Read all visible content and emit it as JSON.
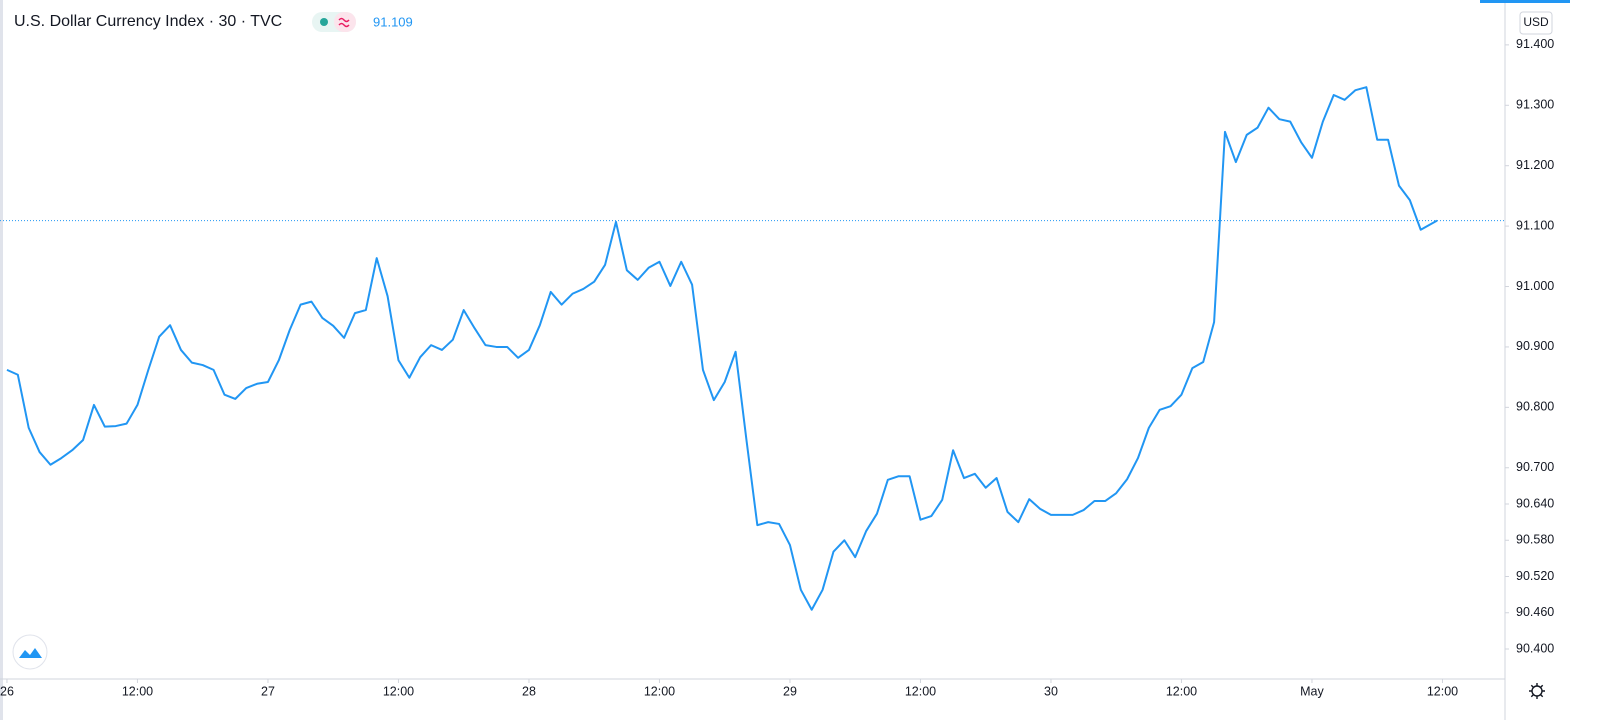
{
  "chart_data": {
    "type": "line",
    "title": "U.S. Dollar Currency Index · 30 · TVC",
    "last_value": 91.109,
    "currency": "USD",
    "color": "#2196f3",
    "x": [
      0,
      1,
      2,
      3,
      4,
      5,
      6,
      7,
      8,
      9,
      10,
      11,
      12,
      13,
      14,
      15,
      16,
      17,
      18,
      19,
      20,
      21,
      22,
      23,
      24,
      25,
      26,
      27,
      28,
      29,
      30,
      31,
      32,
      33,
      34,
      35,
      36,
      37,
      38,
      39,
      40,
      41,
      42,
      43,
      44,
      45,
      46,
      47,
      48,
      49,
      50,
      51,
      52,
      53,
      54,
      55,
      56,
      57,
      58,
      59,
      60,
      61,
      62,
      63,
      64,
      65,
      66,
      67,
      68,
      69,
      70,
      71,
      72,
      73,
      74,
      75,
      76,
      77,
      78,
      79,
      80,
      81,
      82,
      83,
      84,
      85,
      86,
      87,
      88,
      89,
      90,
      91,
      92,
      93,
      94,
      95,
      96,
      97,
      98,
      99,
      100,
      101,
      102,
      103,
      104,
      105,
      106,
      107,
      108,
      109,
      110,
      111,
      112,
      113,
      114,
      115,
      116,
      117,
      118,
      119,
      120,
      121,
      122,
      123,
      124,
      125,
      126,
      127,
      128,
      129,
      130,
      131.5
    ],
    "values": [
      90.862,
      90.854,
      90.766,
      90.726,
      90.705,
      90.716,
      90.729,
      90.746,
      90.804,
      90.768,
      90.769,
      90.773,
      90.804,
      90.862,
      90.917,
      90.936,
      90.895,
      90.874,
      90.87,
      90.862,
      90.821,
      90.814,
      90.832,
      90.839,
      90.842,
      90.878,
      90.928,
      90.97,
      90.975,
      90.948,
      90.935,
      90.915,
      90.956,
      90.961,
      91.047,
      90.984,
      90.878,
      90.849,
      90.883,
      90.903,
      90.895,
      90.912,
      90.961,
      90.931,
      90.903,
      90.9,
      90.9,
      90.882,
      90.895,
      90.936,
      90.991,
      90.97,
      90.988,
      90.996,
      91.008,
      91.036,
      91.107,
      91.027,
      91.011,
      91.031,
      91.041,
      91.001,
      91.041,
      91.003,
      90.862,
      90.812,
      90.842,
      90.892,
      90.746,
      90.605,
      90.61,
      90.607,
      90.572,
      90.498,
      90.465,
      90.498,
      90.561,
      90.58,
      90.552,
      90.595,
      90.624,
      90.68,
      90.686,
      90.686,
      90.614,
      90.62,
      90.647,
      90.729,
      90.683,
      90.69,
      90.667,
      90.683,
      90.627,
      90.61,
      90.648,
      90.632,
      90.622,
      90.622,
      90.622,
      90.63,
      90.645,
      90.645,
      90.658,
      90.681,
      90.716,
      90.766,
      90.796,
      90.802,
      90.821,
      90.865,
      90.875,
      90.941,
      91.256,
      91.206,
      91.251,
      91.263,
      91.296,
      91.277,
      91.273,
      91.239,
      91.213,
      91.273,
      91.317,
      91.309,
      91.325,
      91.33,
      91.243,
      91.243,
      91.167,
      91.143,
      91.094,
      91.109
    ],
    "xlim": [
      -0.18,
      137.75
    ],
    "ylim": [
      90.352,
      91.466
    ],
    "xticks": [
      {
        "value": 0,
        "label": "26"
      },
      {
        "value": 12,
        "label": "12:00"
      },
      {
        "value": 24,
        "label": "27"
      },
      {
        "value": 36,
        "label": "12:00"
      },
      {
        "value": 48,
        "label": "28"
      },
      {
        "value": 60,
        "label": "12:00"
      },
      {
        "value": 72,
        "label": "29"
      },
      {
        "value": 84,
        "label": "12:00"
      },
      {
        "value": 96,
        "label": "30"
      },
      {
        "value": 108,
        "label": "12:00"
      },
      {
        "value": 120,
        "label": "May"
      },
      {
        "value": 132,
        "label": "12:00"
      }
    ],
    "yticks": [
      {
        "value": 91.4,
        "label": "91.400"
      },
      {
        "value": 91.3,
        "label": "91.300"
      },
      {
        "value": 91.2,
        "label": "91.200"
      },
      {
        "value": 91.1,
        "label": "91.100"
      },
      {
        "value": 91.0,
        "label": "91.000"
      },
      {
        "value": 90.9,
        "label": "90.900"
      },
      {
        "value": 90.8,
        "label": "90.800"
      },
      {
        "value": 90.7,
        "label": "90.700"
      },
      {
        "value": 90.64,
        "label": "90.640"
      },
      {
        "value": 90.58,
        "label": "90.580"
      },
      {
        "value": 90.52,
        "label": "90.520"
      },
      {
        "value": 90.46,
        "label": "90.460"
      },
      {
        "value": 90.4,
        "label": "90.400"
      }
    ]
  }
}
